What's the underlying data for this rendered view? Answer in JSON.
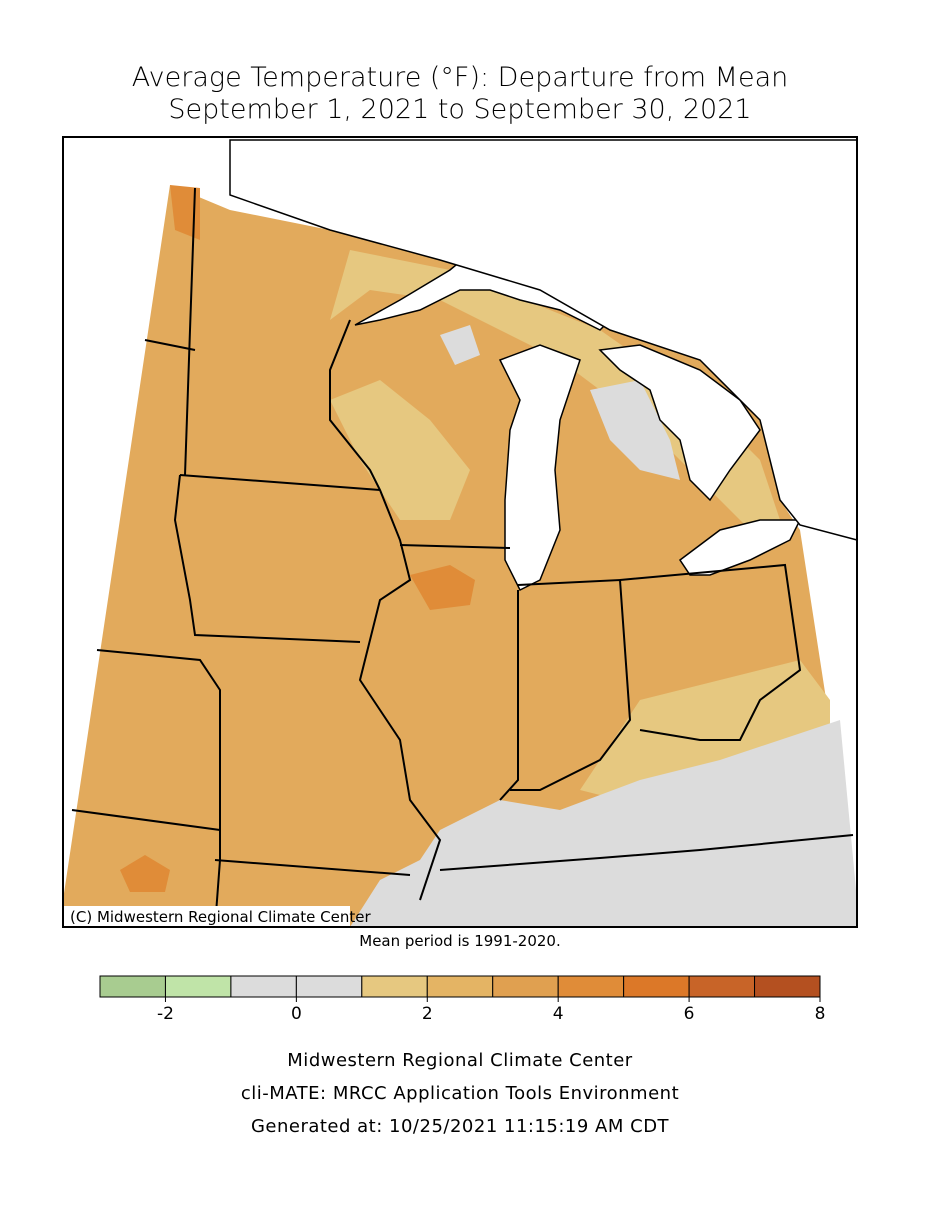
{
  "title": [
    "Average Temperature (°F): Departure from Mean",
    "September 1, 2021 to September 30, 2021"
  ],
  "map": {
    "copyright": "(C) Midwestern Regional Climate Center"
  },
  "note": "Mean period is 1991-2020.",
  "legend": {
    "bins": [
      -3,
      -2,
      -1,
      0,
      1,
      2,
      3,
      4,
      5,
      6,
      7,
      8
    ],
    "colors": [
      "#a8cc90",
      "#c0e4a8",
      "#dcdcdc",
      "#dcdcdc",
      "#e6c880",
      "#e4b464",
      "#e0a050",
      "#e08c38",
      "#dc7828",
      "#c86428",
      "#b45020"
    ],
    "ticks": [
      -2,
      0,
      2,
      4,
      6,
      8
    ]
  },
  "footer": [
    "Midwestern Regional Climate Center",
    "cli-MATE: MRCC Application Tools Environment",
    "Generated at: 10/25/2021 11:15:19 AM CDT"
  ]
}
